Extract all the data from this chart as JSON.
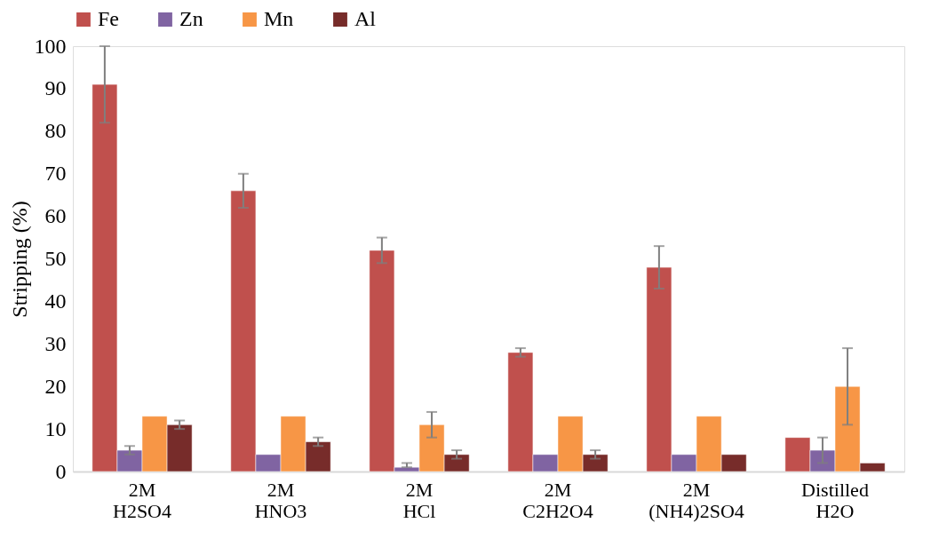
{
  "chart_data": {
    "type": "bar",
    "ylabel": "Stripping (%)",
    "categories": [
      "2M H2SO4",
      "2M HNO3",
      "2M HCl",
      "2M C2H2O4",
      "2M (NH4)2SO4",
      "Distilled H2O"
    ],
    "series": [
      {
        "name": "Fe",
        "color": "#c0504d",
        "values": [
          91,
          66,
          52,
          28,
          48,
          8
        ],
        "errors": [
          9,
          4,
          3,
          1,
          5,
          null
        ]
      },
      {
        "name": "Zn",
        "color": "#8064a2",
        "values": [
          5,
          4,
          1,
          4,
          4,
          5
        ],
        "errors": [
          1,
          null,
          [
            1,
            2
          ],
          null,
          null,
          3
        ]
      },
      {
        "name": "Mn",
        "color": "#f79646",
        "values": [
          13,
          13,
          11,
          13,
          13,
          20
        ],
        "errors": [
          null,
          null,
          3,
          null,
          null,
          9
        ]
      },
      {
        "name": "Al",
        "color": "#772c2a",
        "values": [
          11,
          7,
          4,
          4,
          4,
          2
        ],
        "errors": [
          1,
          1,
          1,
          1,
          null,
          null
        ]
      }
    ],
    "ylim": [
      0,
      100
    ],
    "yticks": [
      0,
      10,
      20,
      30,
      40,
      50,
      60,
      70,
      80,
      90,
      100
    ],
    "grid": false,
    "legend": "top"
  }
}
